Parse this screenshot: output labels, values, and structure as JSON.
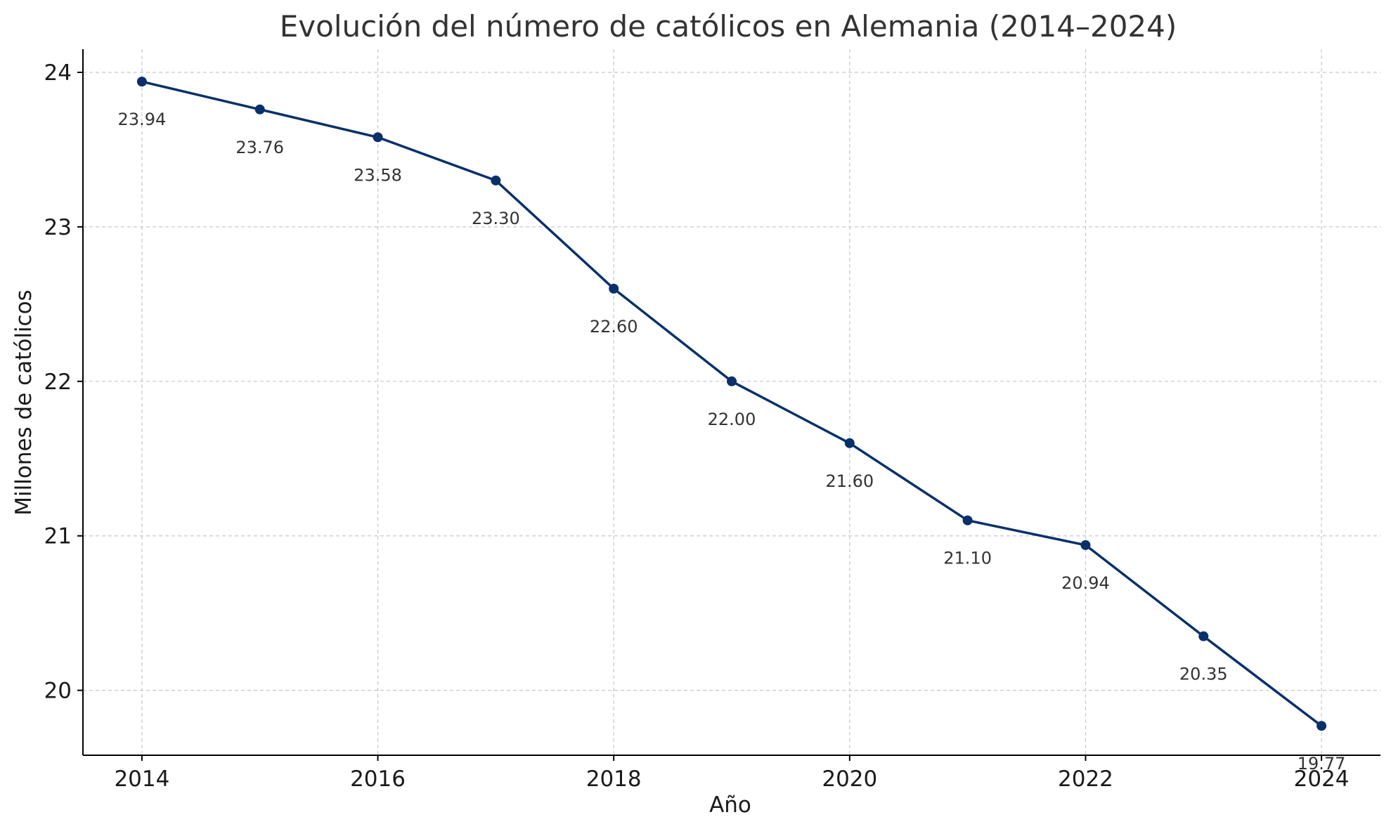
{
  "chart_data": {
    "type": "line",
    "title": "Evolución del número de católicos en Alemania (2014–2024)",
    "xlabel": "Año",
    "ylabel": "Millones de católicos",
    "x": [
      2014,
      2015,
      2016,
      2017,
      2018,
      2019,
      2020,
      2021,
      2022,
      2023,
      2024
    ],
    "series": [
      {
        "values": [
          23.94,
          23.76,
          23.58,
          23.3,
          22.6,
          22.0,
          21.6,
          21.1,
          20.94,
          20.35,
          19.77
        ],
        "data_labels": [
          "23.94",
          "23.76",
          "23.58",
          "23.30",
          "22.60",
          "22.00",
          "21.60",
          "21.10",
          "20.94",
          "20.35",
          "19.77"
        ],
        "color": "#08306b"
      }
    ],
    "xlim": [
      2013.5,
      2024.5
    ],
    "ylim": [
      19.58,
      24.15
    ],
    "xticks": [
      2014,
      2016,
      2018,
      2020,
      2022,
      2024
    ],
    "xtick_labels": [
      "2014",
      "2016",
      "2018",
      "2020",
      "2022",
      "2024"
    ],
    "yticks": [
      20,
      21,
      22,
      23,
      24
    ],
    "ytick_labels": [
      "20",
      "21",
      "22",
      "23",
      "24"
    ],
    "grid": true,
    "legend": "none"
  }
}
